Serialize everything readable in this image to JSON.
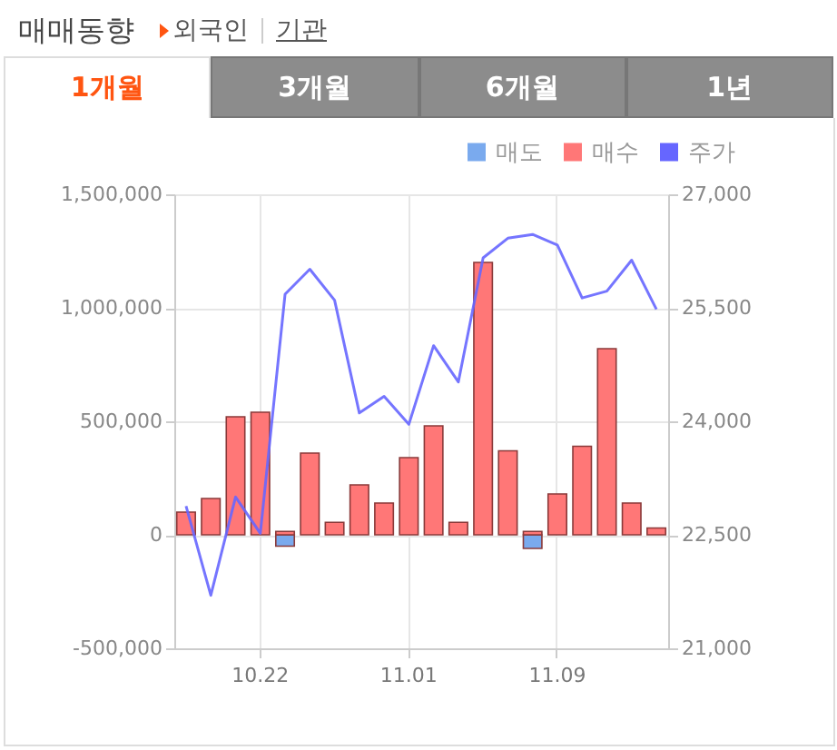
{
  "chart_data": {
    "type": "bar",
    "title": "매매동향",
    "annotations": [
      "외국인",
      "기관",
      "1개월",
      "3개월",
      "6개월",
      "1년"
    ],
    "categories": [
      null,
      null,
      null,
      "10.22",
      null,
      null,
      null,
      null,
      null,
      "11.01",
      null,
      null,
      null,
      null,
      null,
      "11.09",
      null,
      null,
      null,
      null
    ],
    "stacked": true,
    "series": [
      {
        "name": "매도",
        "color": "#7aaaee",
        "values": [
          null,
          null,
          null,
          null,
          -50000,
          null,
          null,
          null,
          null,
          null,
          null,
          null,
          null,
          null,
          -60000,
          null,
          null,
          null,
          null,
          null
        ]
      },
      {
        "name": "매수",
        "color": "#ff7777",
        "values": [
          100000,
          160000,
          520000,
          540000,
          15000,
          360000,
          55000,
          220000,
          140000,
          340000,
          480000,
          55000,
          1200000,
          370000,
          15000,
          180000,
          390000,
          820000,
          140000,
          30000
        ]
      },
      {
        "name": "주가",
        "type": "line",
        "axis": "y2",
        "color": "#6666ff",
        "values": [
          22880,
          21700,
          23000,
          22520,
          25680,
          26010,
          25600,
          24110,
          24330,
          23960,
          25000,
          24520,
          26160,
          26420,
          26470,
          26330,
          25630,
          25720,
          26130,
          25480
        ]
      }
    ],
    "ylim": [
      -500000,
      1500000
    ],
    "yticks": [
      {
        "value": -500000,
        "label": "-500,000"
      },
      0,
      {
        "value": 500000,
        "label": "500,000"
      },
      {
        "value": 1000000,
        "label": "1,000,000"
      },
      {
        "value": 1500000,
        "label": "1,500,000"
      }
    ],
    "y2lim": [
      21000,
      27000
    ],
    "y2ticks": [
      {
        "value": 21000,
        "label": "21,000"
      },
      {
        "value": 22500,
        "label": "22,500"
      },
      {
        "value": 24000,
        "label": "24,000"
      },
      {
        "value": 25500,
        "label": "25,500"
      },
      {
        "value": 27000,
        "label": "27,000"
      }
    ],
    "grid": true,
    "legend": "top right"
  }
}
